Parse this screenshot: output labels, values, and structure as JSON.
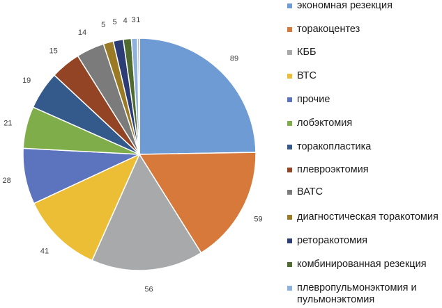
{
  "chart_data": {
    "type": "pie",
    "title": "",
    "legend_position": "right",
    "start_angle_deg": 0,
    "direction": "clockwise",
    "slices": [
      {
        "label": "экономная резекция",
        "value": 89,
        "color": "#6f9bd4"
      },
      {
        "label": "торакоцентез",
        "value": 59,
        "color": "#d6793a"
      },
      {
        "label": "КББ",
        "value": 56,
        "color": "#a7a9ab"
      },
      {
        "label": "ВТС",
        "value": 41,
        "color": "#ecbe35"
      },
      {
        "label": "прочие",
        "value": 28,
        "color": "#5c73bd"
      },
      {
        "label": "лобэктомия",
        "value": 21,
        "color": "#7ead4a"
      },
      {
        "label": "торакопластика",
        "value": 19,
        "color": "#345a8c"
      },
      {
        "label": "плевроэктомия",
        "value": 15,
        "color": "#934424"
      },
      {
        "label": "ВАТС",
        "value": 14,
        "color": "#7b7b7b"
      },
      {
        "label": "диагностическая торакотомия",
        "value": 5,
        "color": "#9a7a25"
      },
      {
        "label": "реторакотомия",
        "value": 5,
        "color": "#2c3d75"
      },
      {
        "label": "комбинированная резекция",
        "value": 4,
        "color": "#4f6b2f"
      },
      {
        "label": "плевропульмонэктомия и пульмонэктомия",
        "value": 3,
        "color": "#8fb2dc"
      },
      {
        "label": "",
        "value": 1,
        "color": "#b7b7b7"
      }
    ]
  }
}
